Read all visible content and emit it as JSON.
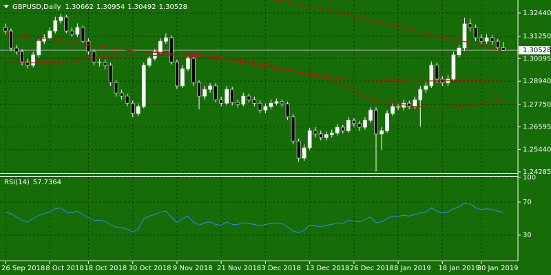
{
  "chart_data": [
    {
      "type": "candlestick",
      "title": "GBPUSD,Daily",
      "candles": [
        [
          1.317,
          1.319,
          1.3135,
          1.3152
        ],
        [
          1.3152,
          1.3165,
          1.305,
          1.3064
        ],
        [
          1.3064,
          1.308,
          1.303,
          1.3046
        ],
        [
          1.3046,
          1.306,
          1.2975,
          1.2993
        ],
        [
          1.2993,
          1.301,
          1.296,
          1.2976
        ],
        [
          1.2976,
          1.3045,
          1.2965,
          1.3029
        ],
        [
          1.3029,
          1.311,
          1.3015,
          1.3099
        ],
        [
          1.3099,
          1.3135,
          1.3085,
          1.3117
        ],
        [
          1.3117,
          1.317,
          1.3105,
          1.3152
        ],
        [
          1.3152,
          1.3225,
          1.314,
          1.3205
        ],
        [
          1.3205,
          1.324,
          1.319,
          1.3223
        ],
        [
          1.3223,
          1.3235,
          1.314,
          1.3152
        ],
        [
          1.3152,
          1.317,
          1.312,
          1.3135
        ],
        [
          1.3135,
          1.319,
          1.312,
          1.317
        ],
        [
          1.317,
          1.318,
          1.3085,
          1.3099
        ],
        [
          1.3099,
          1.3115,
          1.303,
          1.3046
        ],
        [
          1.3046,
          1.306,
          1.2975,
          1.2993
        ],
        [
          1.2993,
          1.301,
          1.297,
          1.299
        ],
        [
          1.299,
          1.3005,
          1.2955,
          1.2976
        ],
        [
          1.2976,
          1.299,
          1.287,
          1.2887
        ],
        [
          1.2887,
          1.29,
          1.2815,
          1.2834
        ],
        [
          1.2834,
          1.285,
          1.28,
          1.2817
        ],
        [
          1.2817,
          1.283,
          1.2765,
          1.2781
        ],
        [
          1.2781,
          1.2795,
          1.271,
          1.2728
        ],
        [
          1.2728,
          1.278,
          1.2715,
          1.2764
        ],
        [
          1.2764,
          1.299,
          1.2755,
          1.2976
        ],
        [
          1.2976,
          1.303,
          1.2965,
          1.3011
        ],
        [
          1.3011,
          1.306,
          1.3,
          1.3046
        ],
        [
          1.3046,
          1.3115,
          1.3035,
          1.3099
        ],
        [
          1.3099,
          1.314,
          1.3085,
          1.3117
        ],
        [
          1.3117,
          1.313,
          1.298,
          1.2993
        ],
        [
          1.2993,
          1.3005,
          1.2855,
          1.287
        ],
        [
          1.287,
          1.2975,
          1.286,
          1.2958
        ],
        [
          1.2958,
          1.3025,
          1.2945,
          1.3011
        ],
        [
          1.3011,
          1.302,
          1.287,
          1.2887
        ],
        [
          1.2887,
          1.29,
          1.275,
          1.2817
        ],
        [
          1.2817,
          1.287,
          1.28,
          1.2852
        ],
        [
          1.2852,
          1.2885,
          1.2835,
          1.287
        ],
        [
          1.287,
          1.2885,
          1.2785,
          1.2799
        ],
        [
          1.2799,
          1.2815,
          1.2765,
          1.2781
        ],
        [
          1.2781,
          1.287,
          1.277,
          1.2852
        ],
        [
          1.2852,
          1.2865,
          1.277,
          1.2785
        ],
        [
          1.2785,
          1.28,
          1.276,
          1.2776
        ],
        [
          1.2776,
          1.2835,
          1.2765,
          1.2817
        ],
        [
          1.2817,
          1.283,
          1.2785,
          1.2799
        ],
        [
          1.2799,
          1.2815,
          1.2765,
          1.2781
        ],
        [
          1.2781,
          1.2795,
          1.273,
          1.2746
        ],
        [
          1.2746,
          1.278,
          1.273,
          1.2764
        ],
        [
          1.2764,
          1.28,
          1.275,
          1.2781
        ],
        [
          1.2781,
          1.2805,
          1.277,
          1.2789
        ],
        [
          1.2789,
          1.28,
          1.276,
          1.2778
        ],
        [
          1.2778,
          1.279,
          1.2695,
          1.2711
        ],
        [
          1.2711,
          1.2725,
          1.257,
          1.2587
        ],
        [
          1.2587,
          1.26,
          1.248,
          1.2499
        ],
        [
          1.2499,
          1.257,
          1.2485,
          1.2552
        ],
        [
          1.2552,
          1.2655,
          1.254,
          1.264
        ],
        [
          1.264,
          1.266,
          1.2605,
          1.2623
        ],
        [
          1.2623,
          1.264,
          1.259,
          1.2605
        ],
        [
          1.2605,
          1.2635,
          1.259,
          1.262
        ],
        [
          1.262,
          1.2645,
          1.2605,
          1.2628
        ],
        [
          1.2628,
          1.2675,
          1.2615,
          1.2658
        ],
        [
          1.2658,
          1.267,
          1.2625,
          1.264
        ],
        [
          1.264,
          1.271,
          1.263,
          1.2693
        ],
        [
          1.2693,
          1.2705,
          1.266,
          1.2676
        ],
        [
          1.2676,
          1.269,
          1.264,
          1.2658
        ],
        [
          1.2658,
          1.271,
          1.2645,
          1.2693
        ],
        [
          1.2693,
          1.276,
          1.268,
          1.2746
        ],
        [
          1.2746,
          1.276,
          1.243,
          1.2623
        ],
        [
          1.2623,
          1.266,
          1.254,
          1.264
        ],
        [
          1.264,
          1.2745,
          1.263,
          1.2728
        ],
        [
          1.2728,
          1.278,
          1.2715,
          1.2764
        ],
        [
          1.2764,
          1.278,
          1.2745,
          1.276
        ],
        [
          1.276,
          1.28,
          1.2745,
          1.2781
        ],
        [
          1.2781,
          1.2795,
          1.275,
          1.2764
        ],
        [
          1.2764,
          1.2815,
          1.275,
          1.2799
        ],
        [
          1.2799,
          1.287,
          1.266,
          1.2852
        ],
        [
          1.2852,
          1.289,
          1.2835,
          1.287
        ],
        [
          1.287,
          1.2995,
          1.286,
          1.2976
        ],
        [
          1.2976,
          1.299,
          1.2885,
          1.2905
        ],
        [
          1.2905,
          1.292,
          1.287,
          1.2887
        ],
        [
          1.2887,
          1.2925,
          1.287,
          1.2905
        ],
        [
          1.2905,
          1.3045,
          1.2895,
          1.3029
        ],
        [
          1.3029,
          1.308,
          1.3015,
          1.3064
        ],
        [
          1.3064,
          1.322,
          1.305,
          1.3188
        ],
        [
          1.3188,
          1.3215,
          1.315,
          1.317
        ],
        [
          1.317,
          1.3185,
          1.31,
          1.3117
        ],
        [
          1.3117,
          1.3135,
          1.3085,
          1.3099
        ],
        [
          1.3099,
          1.3135,
          1.3085,
          1.3117
        ],
        [
          1.3117,
          1.313,
          1.308,
          1.3099
        ],
        [
          1.3099,
          1.311,
          1.305,
          1.3066
        ],
        [
          1.30662,
          1.30954,
          1.30492,
          1.30528
        ]
      ],
      "moving_averages": [
        {
          "color": "#c01010",
          "x": [
            44,
            49,
            60,
            69,
            79,
            86,
            90
          ],
          "values": [
            1.333,
            1.3311,
            1.325,
            1.3188,
            1.3117,
            1.3082,
            1.3046
          ]
        },
        {
          "color": "#c01010",
          "x": [
            0,
            11,
            24,
            36,
            49,
            61,
            74,
            90
          ],
          "values": [
            1.3135,
            1.3099,
            1.3046,
            1.3029,
            1.2958,
            1.2905,
            1.2894,
            1.2901
          ]
        },
        {
          "color": "#c01010",
          "x": [
            0,
            11,
            18,
            30,
            43,
            51,
            59,
            66,
            74,
            80,
            86,
            90
          ],
          "values": [
            1.2986,
            1.2993,
            1.3022,
            1.3029,
            1.3,
            1.2951,
            1.2905,
            1.2799,
            1.2764,
            1.2757,
            1.2781,
            1.2799
          ]
        }
      ],
      "ylim": [
        1.24215,
        1.33111
      ],
      "yticks": [
        {
          "value": 1.3244,
          "label": "1.32440"
        },
        {
          "value": 1.3125,
          "label": "1.31250"
        },
        {
          "value": 1.30095,
          "label": "1.30095"
        },
        {
          "value": 1.2894,
          "label": "1.28940"
        },
        {
          "value": 1.2775,
          "label": "1.27750"
        },
        {
          "value": 1.26595,
          "label": "1.26595"
        },
        {
          "value": 1.2544,
          "label": "1.25440"
        },
        {
          "value": 1.24285,
          "label": "1.24285"
        }
      ],
      "xticks": [
        {
          "value": 0,
          "label": "26 Sep 2018"
        },
        {
          "value": 8,
          "label": "8 Oct 2018"
        },
        {
          "value": 15,
          "label": "18 Oct 2018"
        },
        {
          "value": 23,
          "label": "30 Oct 2018"
        },
        {
          "value": 31,
          "label": "9 Nov 2018"
        },
        {
          "value": 39,
          "label": "21 Nov 2018"
        },
        {
          "value": 47,
          "label": "3 Dec 2018"
        },
        {
          "value": 55,
          "label": "13 Dec 2018"
        },
        {
          "value": 63,
          "label": "26 Dec 2018"
        },
        {
          "value": 71,
          "label": "8 Jan 2019"
        },
        {
          "value": 79,
          "label": "18 Jan 2019"
        },
        {
          "value": 86,
          "label": "30 Jan 2019"
        }
      ],
      "grid": true,
      "colors": {
        "background": "#166d08",
        "bull": "#ffffff",
        "bear": "#000000",
        "wick": "#ffffff"
      }
    },
    {
      "type": "line",
      "title": "RSI(14)",
      "values": [
        58,
        56,
        52,
        48,
        46,
        50,
        54,
        56,
        58,
        62,
        63,
        58,
        57,
        59,
        55,
        51,
        48,
        48,
        47,
        42,
        40,
        39,
        37,
        34,
        37,
        50,
        53,
        55,
        58,
        59,
        52,
        45,
        50,
        53,
        46,
        42,
        45,
        46,
        43,
        42,
        46,
        43,
        43,
        45,
        44,
        43,
        41,
        43,
        44,
        45,
        44,
        40,
        35,
        33,
        36,
        42,
        41,
        40,
        42,
        43,
        45,
        44,
        48,
        47,
        46,
        49,
        52,
        45,
        46,
        50,
        53,
        53,
        54,
        53,
        55,
        57,
        58,
        63,
        59,
        57,
        58,
        62,
        64,
        69,
        68,
        63,
        61,
        62,
        61,
        59,
        57.7364
      ],
      "ylim": [
        0,
        100
      ],
      "yticks": [
        100,
        70,
        30
      ],
      "color": "#2a8cff",
      "grid": true
    }
  ]
}
